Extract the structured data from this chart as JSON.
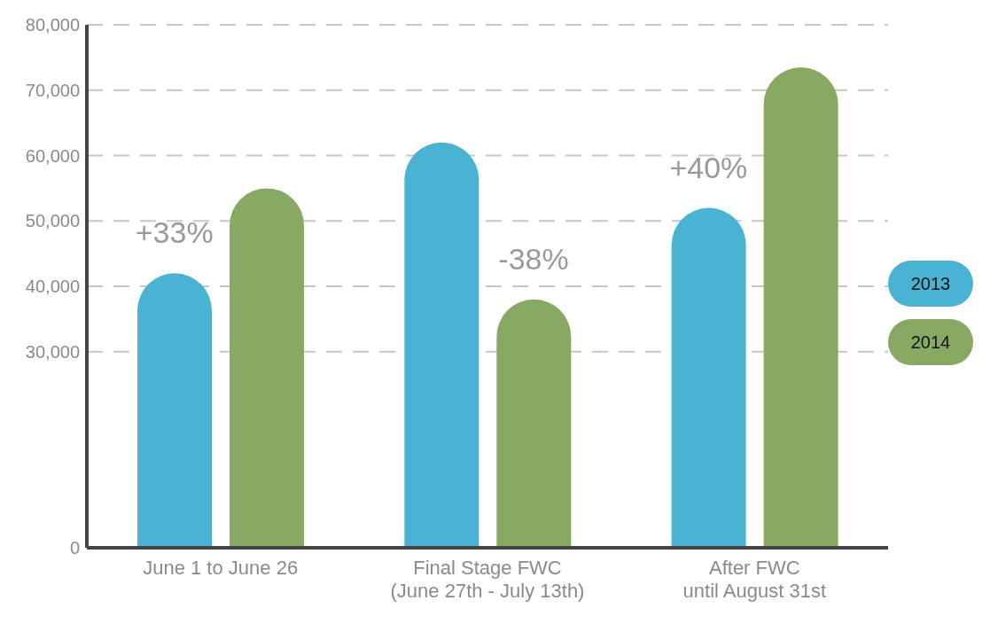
{
  "chart_data": {
    "type": "bar",
    "categories": [
      "June 1 to June 26",
      "Final Stage FWC\n(June 27th - July 13th)",
      "After FWC\nuntil August 31st"
    ],
    "series": [
      {
        "name": "2013",
        "color": "#4ab3d3",
        "values": [
          42000,
          62000,
          52000
        ]
      },
      {
        "name": "2014",
        "color": "#87a964",
        "values": [
          55000,
          38000,
          73500
        ]
      }
    ],
    "ylim": [
      0,
      80000
    ],
    "yticks": [
      0,
      {
        "value": 30000,
        "label": "30,000"
      },
      {
        "value": 40000,
        "label": "40,000"
      },
      {
        "value": 50000,
        "label": "50,000"
      },
      {
        "value": 60000,
        "label": "60,000"
      },
      {
        "value": 70000,
        "label": "70,000"
      },
      {
        "value": 80000,
        "label": "80,000"
      }
    ],
    "grid": "y",
    "legend": "right",
    "annotations": [
      "+33%",
      "-38%",
      "+40%"
    ]
  }
}
